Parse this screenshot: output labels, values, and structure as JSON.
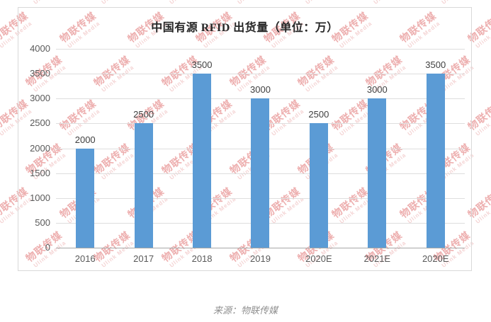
{
  "watermark": {
    "line1": "物联传媒",
    "line2": "Ulink Media",
    "color_cn": "#d94f4f",
    "color_en": "#e8a0a0"
  },
  "chart": {
    "title": "中国有源 RFID 出货量（单位：万）",
    "source": "来源：物联传媒",
    "bar_color": "#5B9BD5",
    "y_ticks": [
      4000,
      3500,
      3000,
      2500,
      2000,
      1500,
      1000,
      500,
      0
    ],
    "categories": [
      "2016",
      "2017",
      "2018",
      "2019",
      "2020E",
      "2021E",
      "2020E"
    ],
    "values": [
      2000,
      2500,
      3500,
      3000,
      2500,
      3000,
      3500
    ],
    "ymax": 4000
  },
  "chart_data": {
    "type": "bar",
    "title": "中国有源 RFID 出货量（单位：万）",
    "categories": [
      "2016",
      "2017",
      "2018",
      "2019",
      "2020E",
      "2021E",
      "2020E"
    ],
    "values": [
      2000,
      2500,
      3500,
      3000,
      2500,
      3000,
      3500
    ],
    "xlabel": "",
    "ylabel": "",
    "ylim": [
      0,
      4000
    ],
    "ytick_step": 500,
    "grid": true,
    "legend": false,
    "bar_color": "#5B9BD5",
    "source_caption": "来源：物联传媒",
    "watermark_text": "物联传媒 Ulink Media"
  }
}
